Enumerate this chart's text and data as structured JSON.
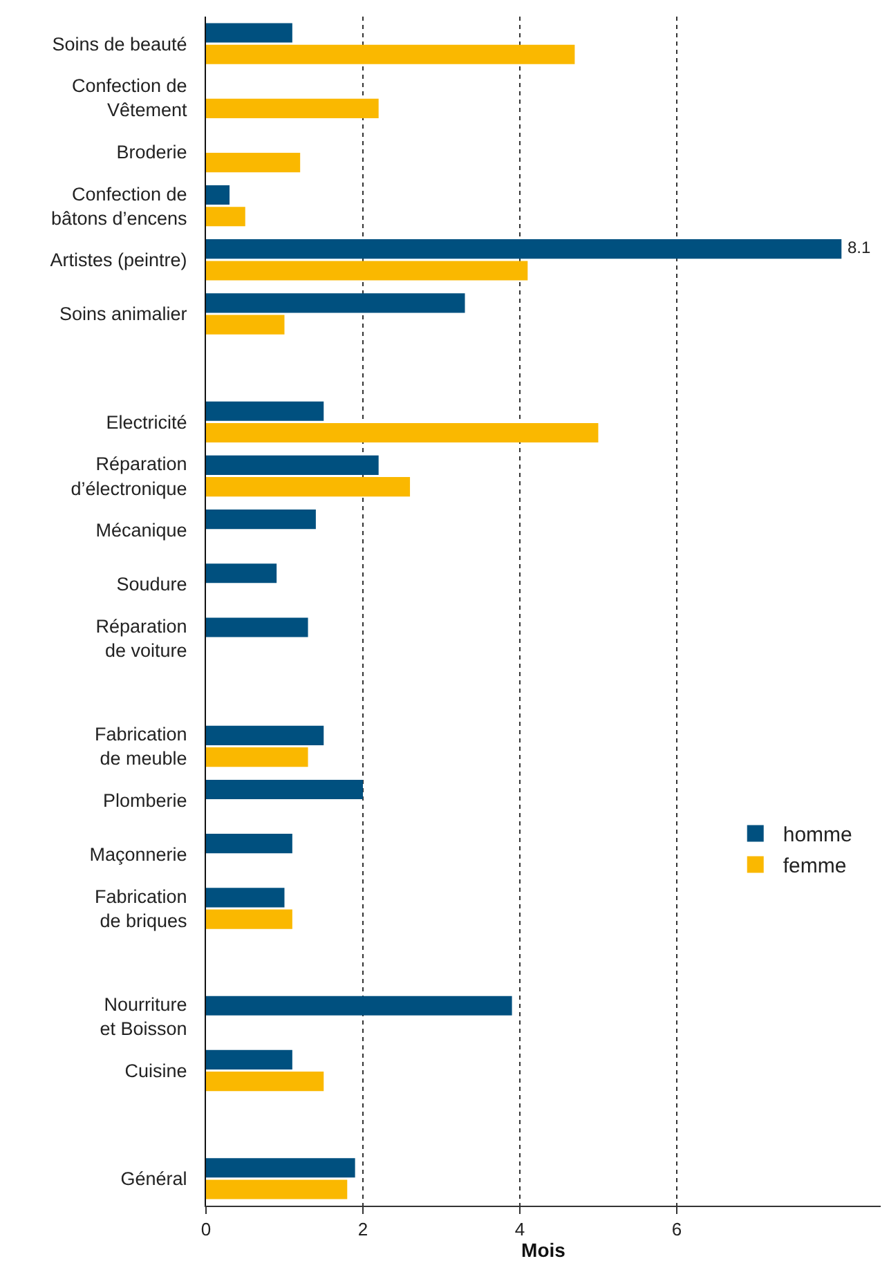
{
  "chart_data": {
    "type": "bar",
    "orientation": "horizontal",
    "xlabel": "Mois",
    "categories": [
      "Soins de beauté",
      "Confection de\nVêtement",
      "Broderie",
      "Confection de\nbâtons d’encens",
      "Artistes (peintre)",
      "Soins animalier",
      null,
      "Electricité",
      "Réparation\nd’électronique",
      "Mécanique",
      "Soudure",
      "Réparation\nde voiture",
      null,
      "Fabrication\nde meuble",
      "Plomberie",
      "Maçonnerie",
      "Fabrication\nde briques",
      null,
      "Nourriture\net Boisson",
      "Cuisine",
      null,
      "Général"
    ],
    "series": [
      {
        "name": "homme",
        "color": "#00507f",
        "values": [
          1.1,
          null,
          null,
          0.3,
          8.1,
          3.3,
          null,
          1.5,
          2.2,
          1.4,
          0.9,
          1.3,
          null,
          1.5,
          2.0,
          1.1,
          1.0,
          null,
          3.9,
          1.1,
          null,
          1.9
        ],
        "value_labels": [
          null,
          null,
          null,
          null,
          "8.1",
          null,
          null,
          null,
          null,
          null,
          null,
          null,
          null,
          null,
          null,
          null,
          null,
          null,
          null,
          null,
          null,
          null
        ]
      },
      {
        "name": "femme",
        "color": "#fab800",
        "values": [
          4.7,
          2.2,
          1.2,
          0.5,
          4.1,
          1.0,
          null,
          5.0,
          2.6,
          null,
          null,
          null,
          null,
          1.3,
          null,
          null,
          1.1,
          null,
          null,
          1.5,
          null,
          1.8
        ]
      }
    ],
    "xlim": [
      0,
      8.6
    ],
    "xticks": [
      0,
      2,
      4,
      6
    ],
    "grid": "x",
    "legend": "right"
  }
}
